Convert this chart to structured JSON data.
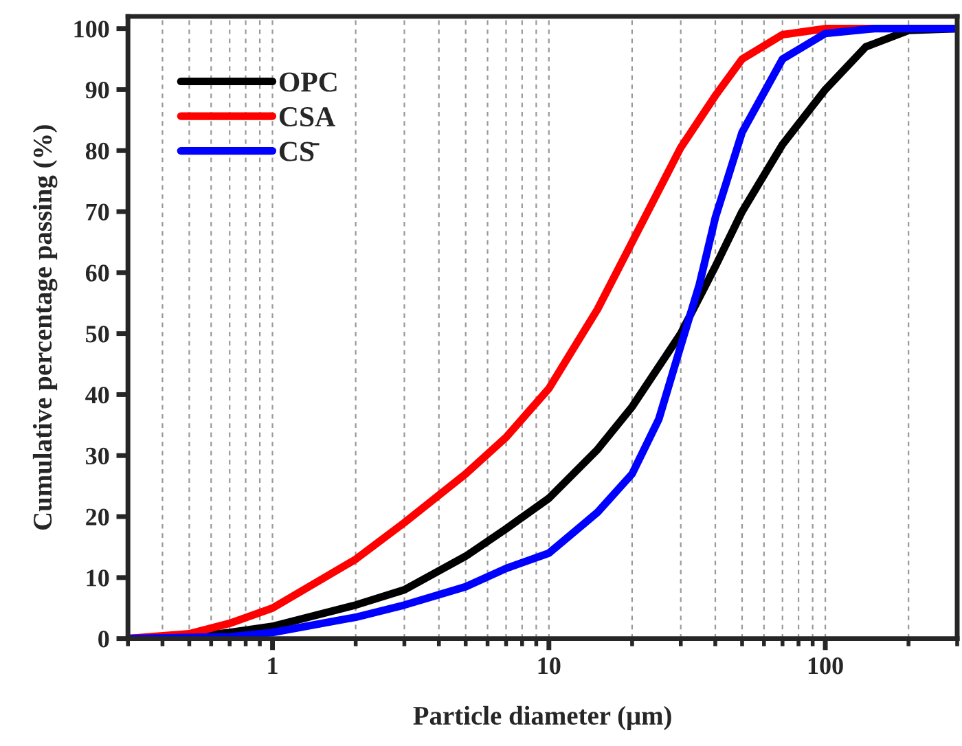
{
  "chart_data": {
    "type": "line",
    "xlabel": "Particle diameter (μm)",
    "ylabel": "Cumulative percentage passing (%)",
    "log": "x",
    "xlim": [
      0.3,
      300
    ],
    "xticks": [
      1,
      10,
      100
    ],
    "ylim": [
      0,
      102
    ],
    "yticks": [
      0,
      10,
      20,
      30,
      40,
      50,
      60,
      70,
      80,
      90,
      100
    ],
    "grid": "x",
    "legend": "top left",
    "line_style": "solid",
    "marker": "none",
    "series": [
      {
        "name": "OPC",
        "color": "#000000",
        "x": [
          0.3,
          0.5,
          0.7,
          1,
          2,
          3,
          5,
          7,
          10,
          15,
          20,
          30,
          40,
          50,
          70,
          100,
          140,
          200,
          300
        ],
        "values": [
          0,
          0.3,
          1,
          2,
          5.5,
          8,
          13.5,
          18,
          23,
          31,
          38,
          50,
          61,
          70,
          81,
          90,
          97,
          99.7,
          100
        ]
      },
      {
        "name": "CSA",
        "color": "#ff0000",
        "x": [
          0.3,
          0.5,
          0.7,
          1,
          2,
          3,
          5,
          7,
          10,
          15,
          20,
          30,
          40,
          50,
          70,
          100,
          150
        ],
        "values": [
          0,
          0.8,
          2.5,
          5,
          13,
          19,
          27,
          33,
          41,
          54,
          65,
          80.5,
          89,
          95,
          99,
          100,
          100
        ]
      },
      {
        "name": "CS̄",
        "color": "#0000ff",
        "x": [
          0.3,
          0.7,
          1,
          2,
          3,
          5,
          7,
          10,
          15,
          20,
          25,
          30,
          35,
          40,
          50,
          70,
          100,
          150,
          300
        ],
        "values": [
          0,
          0.3,
          1,
          3.5,
          5.5,
          8.5,
          11.5,
          14,
          20.7,
          27,
          36,
          48,
          58,
          69,
          83,
          95,
          99.2,
          100,
          100
        ]
      }
    ]
  }
}
